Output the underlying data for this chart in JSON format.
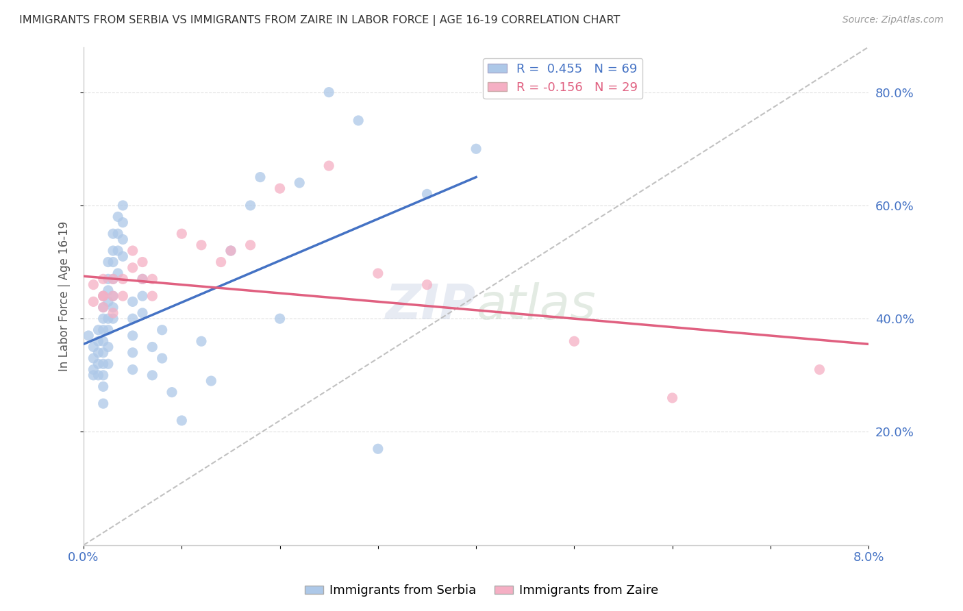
{
  "title": "IMMIGRANTS FROM SERBIA VS IMMIGRANTS FROM ZAIRE IN LABOR FORCE | AGE 16-19 CORRELATION CHART",
  "source": "Source: ZipAtlas.com",
  "ylabel": "In Labor Force | Age 16-19",
  "xlim": [
    0.0,
    0.08
  ],
  "ylim": [
    0.0,
    0.88
  ],
  "right_yticks": [
    0.2,
    0.4,
    0.6,
    0.8
  ],
  "right_ytick_labels": [
    "20.0%",
    "40.0%",
    "60.0%",
    "80.0%"
  ],
  "serbia_R": 0.455,
  "serbia_N": 69,
  "zaire_R": -0.156,
  "zaire_N": 29,
  "serbia_color": "#adc8e8",
  "zaire_color": "#f5afc4",
  "serbia_line_color": "#4472c4",
  "zaire_line_color": "#e06080",
  "ref_line_color": "#bbbbbb",
  "background_color": "#ffffff",
  "grid_color": "#e0e0e0",
  "serbia_x": [
    0.0005,
    0.001,
    0.001,
    0.001,
    0.001,
    0.0015,
    0.0015,
    0.0015,
    0.0015,
    0.0015,
    0.002,
    0.002,
    0.002,
    0.002,
    0.002,
    0.002,
    0.002,
    0.002,
    0.002,
    0.002,
    0.0025,
    0.0025,
    0.0025,
    0.0025,
    0.0025,
    0.0025,
    0.0025,
    0.0025,
    0.003,
    0.003,
    0.003,
    0.003,
    0.003,
    0.003,
    0.003,
    0.0035,
    0.0035,
    0.0035,
    0.0035,
    0.004,
    0.004,
    0.004,
    0.004,
    0.005,
    0.005,
    0.005,
    0.005,
    0.005,
    0.006,
    0.006,
    0.006,
    0.007,
    0.007,
    0.008,
    0.008,
    0.009,
    0.01,
    0.012,
    0.013,
    0.015,
    0.017,
    0.018,
    0.02,
    0.022,
    0.025,
    0.028,
    0.03,
    0.035,
    0.04
  ],
  "serbia_y": [
    0.37,
    0.35,
    0.33,
    0.31,
    0.3,
    0.38,
    0.36,
    0.34,
    0.32,
    0.3,
    0.44,
    0.42,
    0.4,
    0.38,
    0.36,
    0.34,
    0.32,
    0.3,
    0.28,
    0.25,
    0.5,
    0.47,
    0.45,
    0.43,
    0.4,
    0.38,
    0.35,
    0.32,
    0.55,
    0.52,
    0.5,
    0.47,
    0.44,
    0.42,
    0.4,
    0.58,
    0.55,
    0.52,
    0.48,
    0.6,
    0.57,
    0.54,
    0.51,
    0.43,
    0.4,
    0.37,
    0.34,
    0.31,
    0.47,
    0.44,
    0.41,
    0.35,
    0.3,
    0.38,
    0.33,
    0.27,
    0.22,
    0.36,
    0.29,
    0.52,
    0.6,
    0.65,
    0.4,
    0.64,
    0.8,
    0.75,
    0.17,
    0.62,
    0.7
  ],
  "zaire_x": [
    0.001,
    0.001,
    0.002,
    0.002,
    0.002,
    0.002,
    0.003,
    0.003,
    0.003,
    0.004,
    0.004,
    0.005,
    0.005,
    0.006,
    0.006,
    0.007,
    0.007,
    0.01,
    0.012,
    0.014,
    0.015,
    0.017,
    0.02,
    0.025,
    0.03,
    0.035,
    0.05,
    0.06,
    0.075
  ],
  "zaire_y": [
    0.46,
    0.43,
    0.47,
    0.44,
    0.44,
    0.42,
    0.47,
    0.44,
    0.41,
    0.47,
    0.44,
    0.52,
    0.49,
    0.5,
    0.47,
    0.47,
    0.44,
    0.55,
    0.53,
    0.5,
    0.52,
    0.53,
    0.63,
    0.67,
    0.48,
    0.46,
    0.36,
    0.26,
    0.31
  ],
  "serbia_line_x0": 0.0,
  "serbia_line_y0": 0.355,
  "serbia_line_x1": 0.04,
  "serbia_line_y1": 0.65,
  "zaire_line_x0": 0.0,
  "zaire_line_y0": 0.475,
  "zaire_line_x1": 0.08,
  "zaire_line_y1": 0.355
}
